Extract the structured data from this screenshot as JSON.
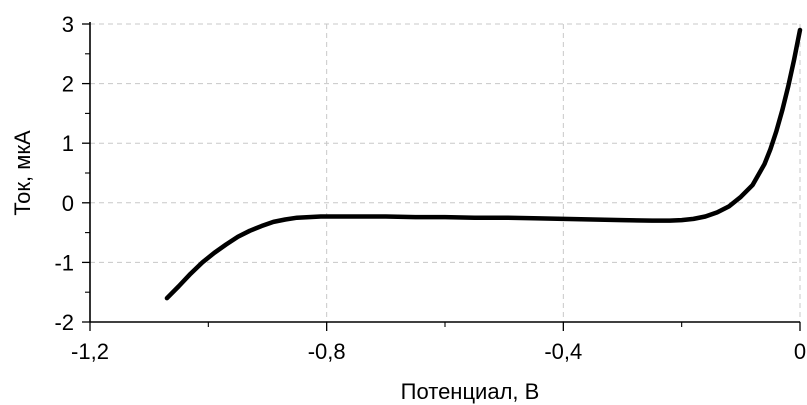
{
  "chart_data": {
    "type": "line",
    "title": "",
    "xlabel": "Потенциал, В",
    "ylabel": "Ток, мкА",
    "xlim": [
      -1.2,
      0
    ],
    "ylim": [
      -2,
      3
    ],
    "x_ticks": [
      -1.2,
      -0.8,
      -0.4,
      0
    ],
    "x_tick_labels": [
      "-1,2",
      "-0,8",
      "-0,4",
      "0"
    ],
    "y_ticks": [
      -2,
      -1,
      0,
      1,
      2,
      3
    ],
    "y_tick_labels": [
      "-2",
      "-1",
      "0",
      "1",
      "2",
      "3"
    ],
    "grid": true,
    "legend": "none",
    "colors": {
      "line": "#000000",
      "grid": "#c8c8c8",
      "axis": "#000000"
    },
    "series": [
      {
        "x": [
          -1.07,
          -1.05,
          -1.03,
          -1.01,
          -0.99,
          -0.97,
          -0.95,
          -0.93,
          -0.91,
          -0.89,
          -0.87,
          -0.85,
          -0.83,
          -0.81,
          -0.78,
          -0.74,
          -0.7,
          -0.65,
          -0.6,
          -0.55,
          -0.5,
          -0.45,
          -0.4,
          -0.35,
          -0.3,
          -0.25,
          -0.22,
          -0.2,
          -0.18,
          -0.16,
          -0.14,
          -0.12,
          -0.1,
          -0.08,
          -0.06,
          -0.05,
          -0.04,
          -0.03,
          -0.02,
          -0.01,
          -0.005,
          0
        ],
        "y": [
          -1.6,
          -1.4,
          -1.19,
          -1.0,
          -0.84,
          -0.7,
          -0.57,
          -0.47,
          -0.39,
          -0.32,
          -0.28,
          -0.25,
          -0.24,
          -0.23,
          -0.23,
          -0.23,
          -0.23,
          -0.24,
          -0.24,
          -0.25,
          -0.25,
          -0.26,
          -0.27,
          -0.28,
          -0.29,
          -0.3,
          -0.3,
          -0.29,
          -0.27,
          -0.23,
          -0.16,
          -0.06,
          0.1,
          0.3,
          0.65,
          0.9,
          1.2,
          1.55,
          1.95,
          2.4,
          2.65,
          2.9
        ]
      }
    ]
  }
}
